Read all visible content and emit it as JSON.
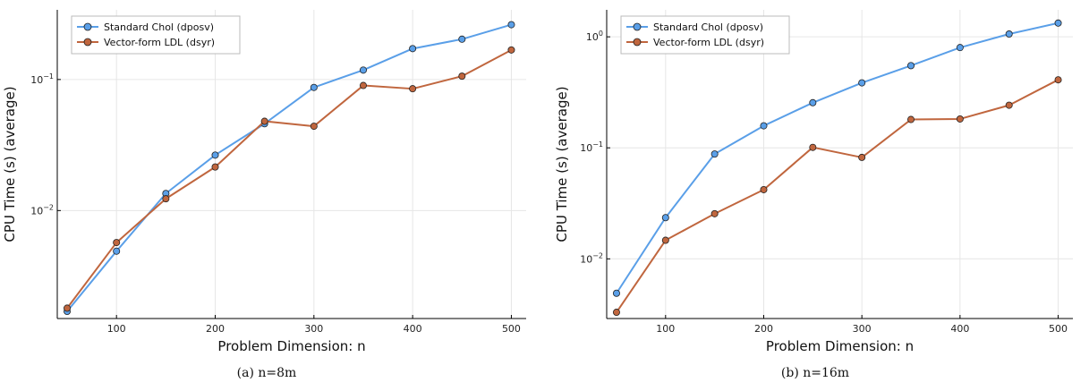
{
  "chart_data": [
    {
      "type": "line",
      "caption": "(a) n=8m",
      "xlabel": "Problem Dimension: n",
      "ylabel": "CPU Time (s) (average)",
      "yscale": "log",
      "x": [
        50,
        100,
        150,
        200,
        250,
        300,
        350,
        400,
        450,
        500
      ],
      "xlim": [
        40,
        515
      ],
      "ylim": [
        0.0015,
        0.34
      ],
      "xticks": [
        100,
        200,
        300,
        400,
        500
      ],
      "yticks": [
        {
          "value": 0.01,
          "base": "10",
          "exp": "−2"
        },
        {
          "value": 0.1,
          "base": "10",
          "exp": "−1"
        }
      ],
      "grid": true,
      "legend": "top-left",
      "series": [
        {
          "name": "Standard Chol (dposv)",
          "color": "#5a9fe8",
          "values": [
            0.0017,
            0.0049,
            0.0135,
            0.0265,
            0.046,
            0.087,
            0.118,
            0.172,
            0.203,
            0.262
          ]
        },
        {
          "name": "Vector-form LDL (dsyr)",
          "color": "#c0663e",
          "values": [
            0.0018,
            0.0057,
            0.0123,
            0.0215,
            0.048,
            0.044,
            0.09,
            0.085,
            0.106,
            0.168
          ]
        }
      ]
    },
    {
      "type": "line",
      "caption": "(b) n=16m",
      "xlabel": "Problem Dimension: n",
      "ylabel": "CPU Time (s) (average)",
      "yscale": "log",
      "x": [
        50,
        100,
        150,
        200,
        250,
        300,
        350,
        400,
        450,
        500
      ],
      "xlim": [
        40,
        515
      ],
      "ylim": [
        0.0029,
        1.75
      ],
      "xticks": [
        100,
        200,
        300,
        400,
        500
      ],
      "yticks": [
        {
          "value": 0.01,
          "base": "10",
          "exp": "−2"
        },
        {
          "value": 0.1,
          "base": "10",
          "exp": "−1"
        },
        {
          "value": 1,
          "base": "10",
          "exp": "0"
        }
      ],
      "grid": true,
      "legend": "top-left",
      "series": [
        {
          "name": "Standard Chol (dposv)",
          "color": "#5a9fe8",
          "values": [
            0.0049,
            0.0235,
            0.088,
            0.158,
            0.255,
            0.385,
            0.55,
            0.8,
            1.06,
            1.33
          ]
        },
        {
          "name": "Vector-form LDL (dsyr)",
          "color": "#c0663e",
          "values": [
            0.0033,
            0.0147,
            0.0255,
            0.042,
            0.101,
            0.082,
            0.18,
            0.182,
            0.242,
            0.41
          ]
        }
      ]
    }
  ]
}
